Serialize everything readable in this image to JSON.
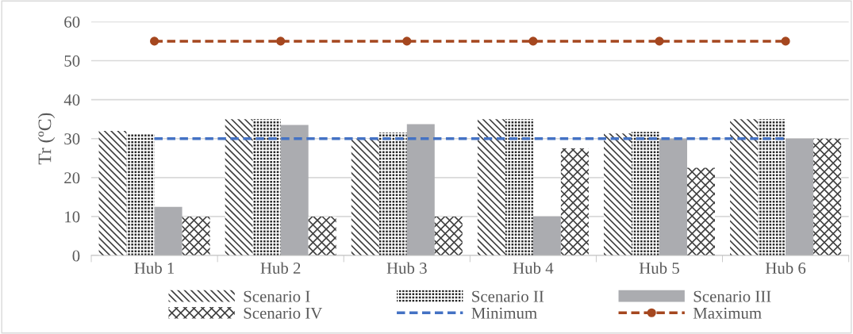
{
  "chart_data": {
    "type": "bar",
    "ylabel": "Tr (ºC)",
    "categories": [
      "Hub 1",
      "Hub 2",
      "Hub 3",
      "Hub 4",
      "Hub 5",
      "Hub 6"
    ],
    "series": [
      {
        "name": "Scenario I",
        "color": "#404040",
        "values": [
          32,
          35,
          30,
          35,
          31.3,
          35
        ]
      },
      {
        "name": "Scenario II",
        "color": "#262626",
        "values": [
          31.3,
          35,
          31.5,
          35,
          31.7,
          35
        ]
      },
      {
        "name": "Scenario III",
        "color": "#abacb0",
        "values": [
          12.5,
          33.5,
          33.7,
          10,
          30,
          30
        ]
      },
      {
        "name": "Scenario IV",
        "color": "#404040",
        "values": [
          10,
          10,
          10,
          27.5,
          22.5,
          30
        ]
      },
      {
        "name": "Minimum",
        "type": "line",
        "color": "#4472c4",
        "line_style": "dashed",
        "marker": "none",
        "values": [
          30,
          30,
          30,
          30,
          30,
          30
        ]
      },
      {
        "name": "Maximum",
        "type": "line",
        "color": "#a5471f",
        "line_style": "dashed",
        "marker": "circle",
        "values": [
          55,
          55,
          55,
          55,
          55,
          55
        ]
      }
    ],
    "ylim": [
      0,
      60
    ],
    "yticks": [
      0,
      10,
      20,
      30,
      40,
      50,
      60
    ],
    "grid": "y",
    "legend": "bottom"
  }
}
